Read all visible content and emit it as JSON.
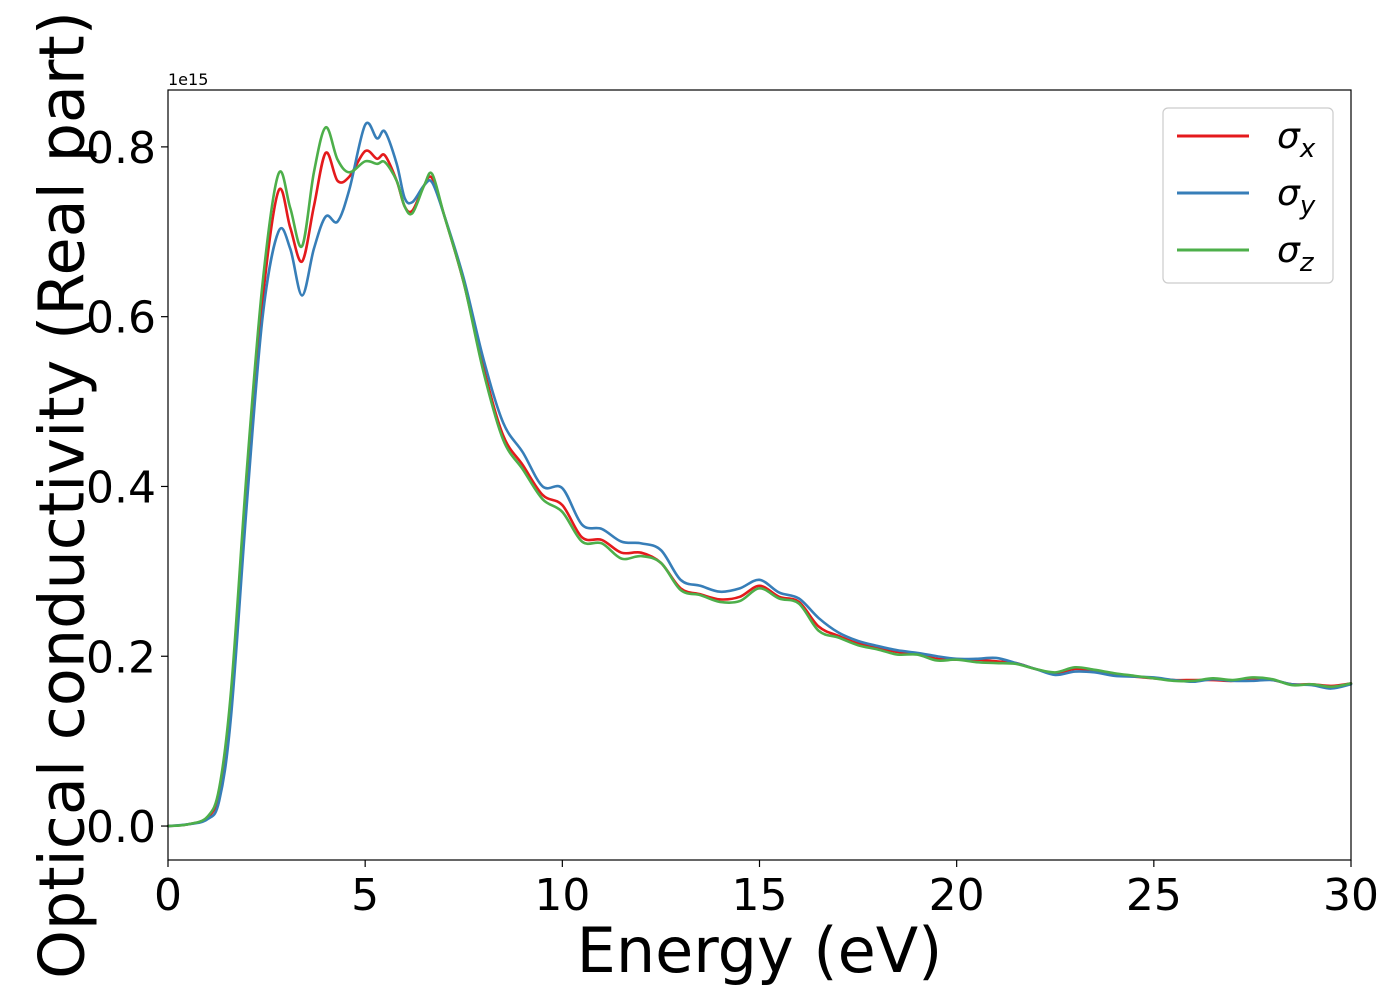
{
  "chart_data": {
    "type": "line",
    "xlabel": "Energy (eV)",
    "ylabel": "Optical conductivity (Real part)",
    "y_offset_label": "1e15",
    "xlim": [
      0,
      30
    ],
    "ylim": [
      -0.04,
      0.867
    ],
    "xticks": [
      0,
      5,
      10,
      15,
      20,
      25,
      30
    ],
    "xtick_labels": [
      "0",
      "5",
      "10",
      "15",
      "20",
      "25",
      "30"
    ],
    "yticks": [
      0.0,
      0.2,
      0.4,
      0.6,
      0.8
    ],
    "ytick_labels": [
      "0.0",
      "0.2",
      "0.4",
      "0.6",
      "0.8"
    ],
    "grid": false,
    "legend_position": "top-right",
    "series": [
      {
        "name": "σx",
        "name_base": "σ",
        "name_sub": "x",
        "color": "#e41a1c",
        "x": [
          0,
          0.5,
          1.0,
          1.3,
          1.6,
          2.0,
          2.4,
          2.8,
          3.1,
          3.4,
          3.7,
          4.0,
          4.3,
          4.6,
          5.0,
          5.3,
          5.5,
          5.8,
          6.0,
          6.2,
          6.5,
          6.7,
          7.0,
          7.5,
          8.0,
          8.5,
          9.0,
          9.5,
          10.0,
          10.5,
          11.0,
          11.5,
          12.0,
          12.5,
          13.0,
          13.5,
          14.0,
          14.5,
          15.0,
          15.5,
          16.0,
          16.5,
          17.0,
          17.5,
          18.0,
          18.5,
          19.0,
          19.5,
          20.0,
          20.5,
          21.0,
          21.5,
          22.0,
          22.5,
          23.0,
          23.5,
          24.0,
          24.5,
          25.0,
          25.5,
          26.0,
          26.5,
          27.0,
          27.5,
          28.0,
          28.5,
          29.0,
          29.5,
          30.0
        ],
        "values": [
          0.0,
          0.002,
          0.01,
          0.04,
          0.15,
          0.4,
          0.62,
          0.748,
          0.705,
          0.665,
          0.73,
          0.793,
          0.76,
          0.765,
          0.795,
          0.786,
          0.79,
          0.76,
          0.73,
          0.725,
          0.755,
          0.763,
          0.72,
          0.64,
          0.54,
          0.46,
          0.425,
          0.39,
          0.378,
          0.34,
          0.337,
          0.322,
          0.322,
          0.31,
          0.28,
          0.273,
          0.267,
          0.27,
          0.283,
          0.27,
          0.264,
          0.235,
          0.224,
          0.215,
          0.21,
          0.205,
          0.203,
          0.197,
          0.196,
          0.196,
          0.194,
          0.192,
          0.185,
          0.18,
          0.185,
          0.183,
          0.179,
          0.176,
          0.174,
          0.172,
          0.172,
          0.172,
          0.171,
          0.174,
          0.172,
          0.167,
          0.167,
          0.165,
          0.168
        ]
      },
      {
        "name": "σy",
        "name_base": "σ",
        "name_sub": "y",
        "color": "#377eb8",
        "x": [
          0,
          0.5,
          1.0,
          1.3,
          1.6,
          2.0,
          2.4,
          2.8,
          3.1,
          3.4,
          3.7,
          4.0,
          4.3,
          4.6,
          5.0,
          5.3,
          5.5,
          5.8,
          6.0,
          6.2,
          6.5,
          6.7,
          7.0,
          7.5,
          8.0,
          8.5,
          9.0,
          9.5,
          10.0,
          10.5,
          11.0,
          11.5,
          12.0,
          12.5,
          13.0,
          13.5,
          14.0,
          14.5,
          15.0,
          15.5,
          16.0,
          16.5,
          17.0,
          17.5,
          18.0,
          18.5,
          19.0,
          19.5,
          20.0,
          20.5,
          21.0,
          21.5,
          22.0,
          22.5,
          23.0,
          23.5,
          24.0,
          24.5,
          25.0,
          25.5,
          26.0,
          26.5,
          27.0,
          27.5,
          28.0,
          28.5,
          29.0,
          29.5,
          30.0
        ],
        "values": [
          0.0,
          0.002,
          0.008,
          0.03,
          0.13,
          0.38,
          0.6,
          0.7,
          0.68,
          0.625,
          0.68,
          0.718,
          0.712,
          0.75,
          0.826,
          0.81,
          0.818,
          0.78,
          0.74,
          0.735,
          0.755,
          0.758,
          0.72,
          0.645,
          0.55,
          0.475,
          0.44,
          0.4,
          0.398,
          0.355,
          0.35,
          0.335,
          0.333,
          0.325,
          0.29,
          0.283,
          0.276,
          0.28,
          0.29,
          0.275,
          0.268,
          0.245,
          0.228,
          0.218,
          0.212,
          0.207,
          0.204,
          0.2,
          0.197,
          0.197,
          0.198,
          0.192,
          0.185,
          0.178,
          0.182,
          0.181,
          0.177,
          0.176,
          0.175,
          0.172,
          0.17,
          0.173,
          0.171,
          0.171,
          0.172,
          0.167,
          0.166,
          0.162,
          0.167
        ]
      },
      {
        "name": "σz",
        "name_base": "σ",
        "name_sub": "z",
        "color": "#4daf4a",
        "x": [
          0,
          0.5,
          1.0,
          1.3,
          1.6,
          2.0,
          2.4,
          2.8,
          3.1,
          3.4,
          3.7,
          4.0,
          4.3,
          4.6,
          5.0,
          5.3,
          5.5,
          5.8,
          6.0,
          6.2,
          6.5,
          6.7,
          7.0,
          7.5,
          8.0,
          8.5,
          9.0,
          9.5,
          10.0,
          10.5,
          11.0,
          11.5,
          12.0,
          12.5,
          13.0,
          13.5,
          14.0,
          14.5,
          15.0,
          15.5,
          16.0,
          16.5,
          17.0,
          17.5,
          18.0,
          18.5,
          19.0,
          19.5,
          20.0,
          20.5,
          21.0,
          21.5,
          22.0,
          22.5,
          23.0,
          23.5,
          24.0,
          24.5,
          25.0,
          25.5,
          26.0,
          26.5,
          27.0,
          27.5,
          28.0,
          28.5,
          29.0,
          29.5,
          30.0
        ],
        "values": [
          0.0,
          0.002,
          0.011,
          0.045,
          0.16,
          0.42,
          0.64,
          0.768,
          0.728,
          0.683,
          0.77,
          0.823,
          0.785,
          0.77,
          0.783,
          0.78,
          0.782,
          0.76,
          0.73,
          0.722,
          0.755,
          0.768,
          0.72,
          0.64,
          0.535,
          0.455,
          0.42,
          0.385,
          0.37,
          0.335,
          0.333,
          0.315,
          0.318,
          0.31,
          0.278,
          0.272,
          0.264,
          0.265,
          0.28,
          0.268,
          0.262,
          0.23,
          0.222,
          0.213,
          0.208,
          0.202,
          0.202,
          0.195,
          0.196,
          0.193,
          0.192,
          0.191,
          0.185,
          0.181,
          0.187,
          0.184,
          0.18,
          0.177,
          0.174,
          0.171,
          0.171,
          0.174,
          0.172,
          0.175,
          0.173,
          0.166,
          0.167,
          0.164,
          0.168
        ]
      }
    ]
  }
}
